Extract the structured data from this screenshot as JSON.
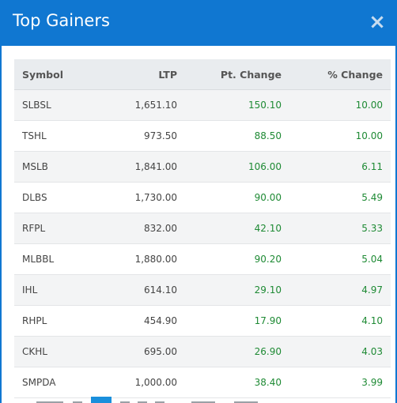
{
  "modal": {
    "title": "Top Gainers",
    "close_symbol": "×"
  },
  "table": {
    "columns": [
      "Symbol",
      "LTP",
      "Pt. Change",
      "% Change"
    ],
    "rows": [
      {
        "symbol": "SLBSL",
        "ltp": "1,651.10",
        "pt_change": "150.10",
        "pct_change": "10.00"
      },
      {
        "symbol": "TSHL",
        "ltp": "973.50",
        "pt_change": "88.50",
        "pct_change": "10.00"
      },
      {
        "symbol": "MSLB",
        "ltp": "1,841.00",
        "pt_change": "106.00",
        "pct_change": "6.11"
      },
      {
        "symbol": "DLBS",
        "ltp": "1,730.00",
        "pt_change": "90.00",
        "pct_change": "5.49"
      },
      {
        "symbol": "RFPL",
        "ltp": "832.00",
        "pt_change": "42.10",
        "pct_change": "5.33"
      },
      {
        "symbol": "MLBBL",
        "ltp": "1,880.00",
        "pt_change": "90.20",
        "pct_change": "5.04"
      },
      {
        "symbol": "IHL",
        "ltp": "614.10",
        "pt_change": "29.10",
        "pct_change": "4.97"
      },
      {
        "symbol": "RHPL",
        "ltp": "454.90",
        "pt_change": "17.90",
        "pct_change": "4.10"
      },
      {
        "symbol": "CKHL",
        "ltp": "695.00",
        "pt_change": "26.90",
        "pct_change": "4.03"
      },
      {
        "symbol": "SMPDA",
        "ltp": "1,000.00",
        "pt_change": "38.40",
        "pct_change": "3.99"
      }
    ]
  },
  "colors": {
    "header_bg": "#1077d1",
    "positive": "#1e8a34",
    "pager_active": "#1a8fdc"
  }
}
